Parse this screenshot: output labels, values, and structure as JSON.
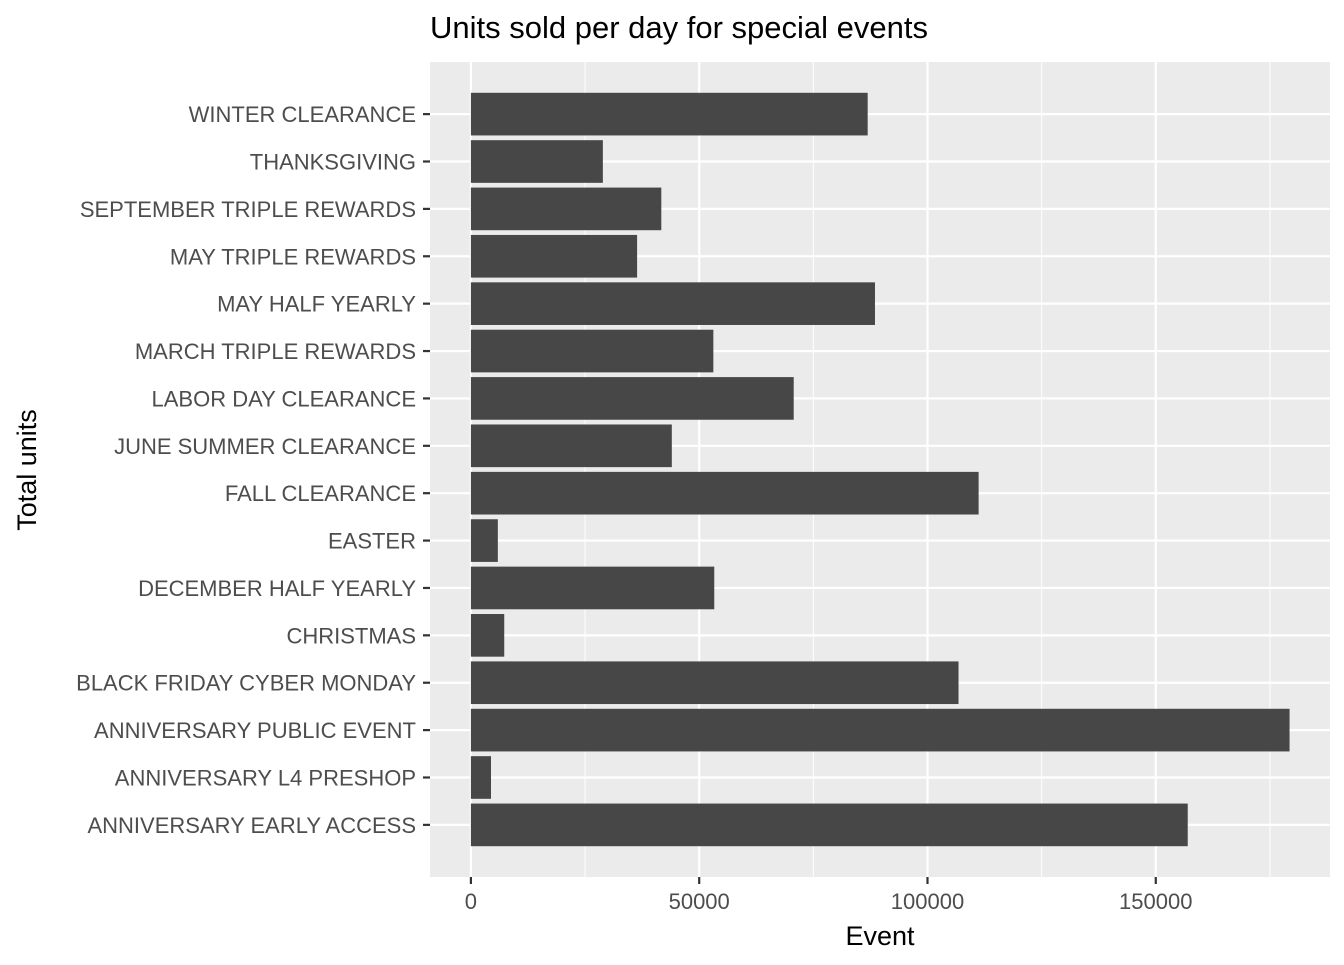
{
  "colors": {
    "panel": "#ebebeb",
    "bar": "#474747",
    "grid": "#ffffff",
    "tick": "#333333",
    "tick_text": "#4d4d4d"
  },
  "chart_data": {
    "type": "bar",
    "orientation": "horizontal",
    "title": "Units sold per day for special events",
    "xlabel": "Event",
    "ylabel": "Total units",
    "categories": [
      "ANNIVERSARY EARLY ACCESS",
      "ANNIVERSARY L4 PRESHOP",
      "ANNIVERSARY PUBLIC EVENT",
      "BLACK FRIDAY CYBER MONDAY",
      "CHRISTMAS",
      "DECEMBER HALF YEARLY",
      "EASTER",
      "FALL CLEARANCE",
      "JUNE SUMMER CLEARANCE",
      "LABOR DAY CLEARANCE",
      "MARCH TRIPLE REWARDS",
      "MAY HALF YEARLY",
      "MAY TRIPLE REWARDS",
      "SEPTEMBER TRIPLE REWARDS",
      "THANKSGIVING",
      "WINTER CLEARANCE"
    ],
    "values": [
      157000,
      4400,
      179300,
      106800,
      7300,
      53300,
      5900,
      111200,
      44000,
      70700,
      53100,
      88500,
      36400,
      41700,
      28900,
      86900
    ],
    "xlim": [
      -8960,
      188160
    ],
    "xticks": [
      0,
      50000,
      100000,
      150000
    ],
    "xtick_labels": [
      "0",
      "50000",
      "100000",
      "150000"
    ],
    "grid": true,
    "legend": "none"
  }
}
